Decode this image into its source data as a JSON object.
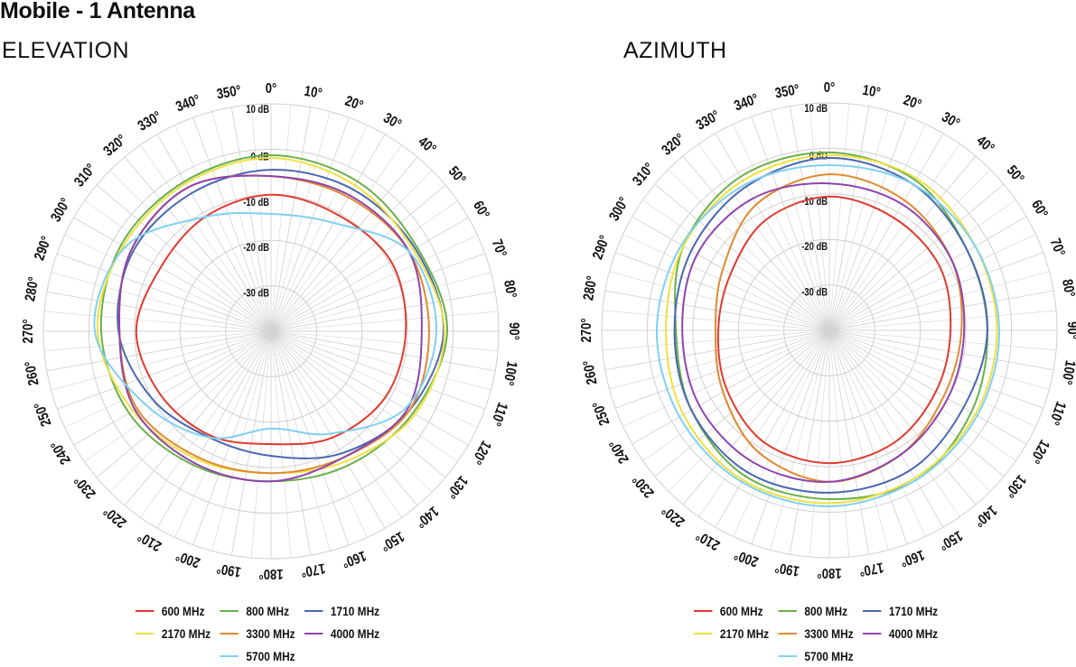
{
  "page": {
    "title": "Mobile - 1 Antenna"
  },
  "chart_data": [
    {
      "type": "polar-line",
      "title": "ELEVATION",
      "radial_unit": "dB",
      "radial_range": [
        -40,
        10
      ],
      "radial_ticks": [
        10,
        0,
        -10,
        -20,
        -30
      ],
      "radial_tick_labels": [
        "10 dB",
        "0 dB",
        "-10 dB",
        "-20 dB",
        "-30 dB"
      ],
      "angle_ticks": [
        0,
        10,
        20,
        30,
        40,
        50,
        60,
        70,
        80,
        90,
        100,
        110,
        120,
        130,
        140,
        150,
        160,
        170,
        180,
        190,
        200,
        210,
        220,
        230,
        240,
        250,
        260,
        270,
        280,
        290,
        300,
        310,
        320,
        330,
        340,
        350
      ],
      "angle_tick_labels": [
        "0°",
        "10°",
        "20°",
        "30°",
        "40°",
        "50°",
        "60°",
        "70°",
        "80°",
        "90°",
        "100°",
        "110°",
        "120°",
        "130°",
        "140°",
        "150°",
        "160°",
        "170°",
        "180°",
        "190°",
        "200°",
        "210°",
        "220°",
        "230°",
        "240°",
        "250°",
        "260°",
        "270°",
        "280°",
        "290°",
        "300°",
        "310°",
        "320°",
        "330°",
        "340°",
        "350°"
      ],
      "angles": [
        0,
        30,
        60,
        90,
        120,
        150,
        180,
        210,
        240,
        270,
        300,
        330
      ],
      "grid": true,
      "legend": "bottom",
      "series": [
        {
          "name": "600 MHz",
          "color": "#e03a2f",
          "values": [
            -10,
            -10.5,
            -9.5,
            -10.4,
            -11,
            -13,
            -15.2,
            -13.5,
            -12,
            -10.4,
            -12,
            -11
          ]
        },
        {
          "name": "800 MHz",
          "color": "#6ab04c",
          "values": [
            -1.3,
            -2,
            -3,
            -1.3,
            -4,
            -6,
            -7,
            -6,
            -4,
            -2.7,
            -2,
            -2
          ]
        },
        {
          "name": "1710 MHz",
          "color": "#4a67b0",
          "values": [
            -4.5,
            -4,
            -3.5,
            -2.1,
            -5,
            -9,
            -12.6,
            -13,
            -10,
            -6.5,
            -5,
            -5
          ]
        },
        {
          "name": "2170 MHz",
          "color": "#f0e040",
          "values": [
            -1.9,
            -3,
            -4,
            -1.9,
            -3.5,
            -7,
            -8.8,
            -7.5,
            -5,
            -1.9,
            -2.5,
            -2.5
          ]
        },
        {
          "name": "3300 MHz",
          "color": "#e08a30",
          "values": [
            -5.9,
            -6,
            -5,
            -5.3,
            -5,
            -8,
            -8.8,
            -8,
            -6,
            -6.7,
            -4.5,
            -3.5
          ]
        },
        {
          "name": "4000 MHz",
          "color": "#8e44ad",
          "values": [
            -5.9,
            -5.5,
            -5,
            -6.9,
            -5.5,
            -8,
            -7,
            -6.5,
            -5.5,
            -6.7,
            -4.5,
            -3.5
          ]
        },
        {
          "name": "5700 MHz",
          "color": "#80d0f0",
          "values": [
            -14.2,
            -12.5,
            -5,
            -3.7,
            -6,
            -14,
            -18.6,
            -13,
            -8,
            -1.3,
            -3,
            -11
          ]
        }
      ]
    },
    {
      "type": "polar-line",
      "title": "AZIMUTH",
      "radial_unit": "dB",
      "radial_range": [
        -40,
        10
      ],
      "radial_ticks": [
        10,
        0,
        -10,
        -20,
        -30
      ],
      "radial_tick_labels": [
        "10 dB",
        "0 dB",
        "-10 dB",
        "-20 dB",
        "-30 dB"
      ],
      "angle_ticks": [
        0,
        10,
        20,
        30,
        40,
        50,
        60,
        70,
        80,
        90,
        100,
        110,
        120,
        130,
        140,
        150,
        160,
        170,
        180,
        190,
        200,
        210,
        220,
        230,
        240,
        250,
        260,
        270,
        280,
        290,
        300,
        310,
        320,
        330,
        340,
        350
      ],
      "angle_tick_labels": [
        "0°",
        "10°",
        "20°",
        "30°",
        "40°",
        "50°",
        "60°",
        "70°",
        "80°",
        "90°",
        "100°",
        "110°",
        "120°",
        "130°",
        "140°",
        "150°",
        "160°",
        "170°",
        "180°",
        "190°",
        "200°",
        "210°",
        "220°",
        "230°",
        "240°",
        "250°",
        "260°",
        "270°",
        "280°",
        "290°",
        "300°",
        "310°",
        "320°",
        "330°",
        "340°",
        "350°"
      ],
      "angles": [
        0,
        30,
        60,
        90,
        120,
        150,
        180,
        210,
        240,
        270,
        300,
        330
      ],
      "grid": true,
      "legend": "bottom",
      "series": [
        {
          "name": "600 MHz",
          "color": "#e03a2f",
          "values": [
            -10.6,
            -11.5,
            -12,
            -13.4,
            -13,
            -11.5,
            -10.8,
            -11.5,
            -14,
            -15.6,
            -15,
            -12
          ]
        },
        {
          "name": "800 MHz",
          "color": "#6ab04c",
          "values": [
            -0.9,
            -2,
            -5,
            -5.3,
            -4,
            -2,
            -2.9,
            -3,
            -5,
            -6.3,
            -3,
            -1
          ]
        },
        {
          "name": "1710 MHz",
          "color": "#4a67b0",
          "values": [
            -2.1,
            -3,
            -5,
            -5.3,
            -6,
            -4.5,
            -4.3,
            -4,
            -5,
            -6,
            -5,
            -3.5
          ]
        },
        {
          "name": "2170 MHz",
          "color": "#f0e040",
          "values": [
            -1.5,
            -1.5,
            -3,
            -3.2,
            -3,
            -2.5,
            -2,
            -2,
            -3,
            -4.1,
            -3,
            -2
          ]
        },
        {
          "name": "3300 MHz",
          "color": "#e08a30",
          "values": [
            -5.7,
            -7,
            -9,
            -11,
            -11,
            -8.5,
            -6.7,
            -9,
            -13,
            -15,
            -13,
            -8
          ]
        },
        {
          "name": "4000 MHz",
          "color": "#8e44ad",
          "values": [
            -7.7,
            -8,
            -9,
            -10.4,
            -10,
            -8.5,
            -6.7,
            -6.5,
            -7,
            -7.7,
            -6.5,
            -6.5
          ]
        },
        {
          "name": "5700 MHz",
          "color": "#80d0f0",
          "values": [
            -3.7,
            -3,
            -3,
            -2.7,
            -2.5,
            -2,
            -1.3,
            -1.5,
            -2,
            -2.1,
            -2.5,
            -3
          ]
        }
      ]
    }
  ]
}
